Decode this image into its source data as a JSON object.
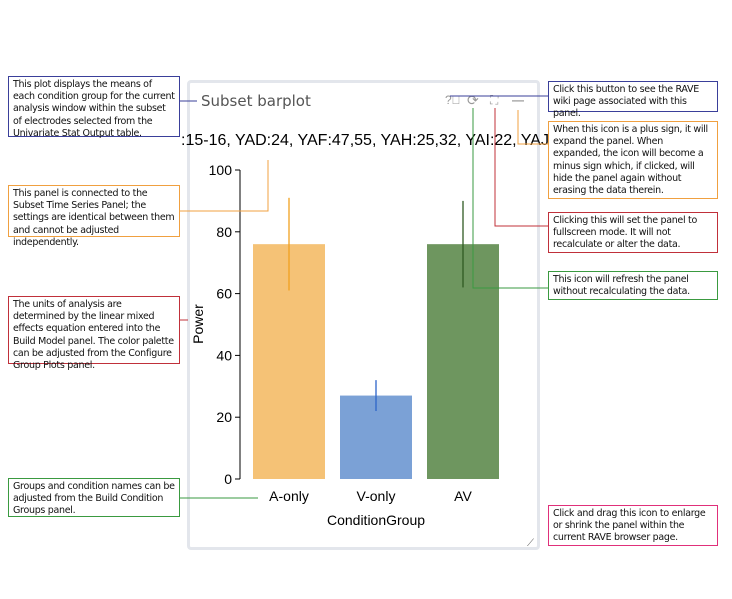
{
  "panel": {
    "title": "Subset barplot",
    "subtitle": ":15-16, YAD:24, YAF:47,55, YAH:25,32, YAI:22, YAJ",
    "icons": [
      "help-icon",
      "refresh-icon",
      "fullscreen-icon",
      "minimize-icon",
      "resize-handle-icon"
    ]
  },
  "chart_data": {
    "type": "bar",
    "categories": [
      "A-only",
      "V-only",
      "AV"
    ],
    "values": [
      76,
      27,
      76
    ],
    "error_low": [
      61,
      22,
      62
    ],
    "error_high": [
      91,
      32,
      90
    ],
    "colors": [
      "#f5c276",
      "#7ba1d6",
      "#6e965f"
    ],
    "error_colors": [
      "#f0a020",
      "#2d64c8",
      "#2f5a22"
    ],
    "xlabel": "ConditionGroup",
    "ylabel": "Power",
    "ylim": [
      0,
      100
    ],
    "yticks": [
      "0",
      "20",
      "40",
      "60",
      "80",
      "100"
    ]
  },
  "notes": {
    "left1": "This plot displays the means of each condition group for the current analysis window within the subset of electrodes selected from the Univariate Stat Output table.",
    "left2": "This panel is connected to the Subset Time Series Panel; the settings are identical between them and cannot be adjusted independently.",
    "left3": "The units of analysis are determined by the linear mixed effects equation entered into the Build Model panel. The color palette can be adjusted from the Configure Group Plots panel.",
    "left4": "Groups and condition names can be adjusted from the Build Condition Groups panel.",
    "right1": "Click this button to see the RAVE wiki page associated with this panel.",
    "right2": "When this icon is a plus sign, it will expand the panel. When expanded, the icon will become a minus sign which, if clicked, will hide the panel again without erasing the data therein.",
    "right3": "Clicking this will set the panel to fullscreen mode. It will not recalculate or alter the data.",
    "right4": "This icon will refresh the panel without recalculating the data.",
    "right5": "Click and drag this icon to enlarge or shrink the panel within the current RAVE browser page."
  }
}
